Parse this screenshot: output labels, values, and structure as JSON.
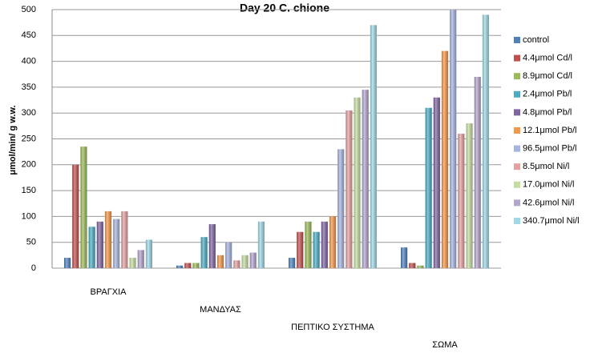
{
  "chart_data": {
    "type": "bar",
    "title": "Day 20 C. chione",
    "y_label": "μmol/min/ g w.w.",
    "categories": [
      "ΒΡΑΓΧΙΑ",
      "ΜΑΝΔΥΑΣ",
      "ΠΕΠΤΙΚΟ ΣΥΣΤΗΜΑ",
      "ΣΩΜΑ"
    ],
    "series": [
      {
        "name": "control",
        "color": "#4f81bd",
        "values": [
          20,
          5,
          20,
          40
        ]
      },
      {
        "name": "4.4μmol Cd/l",
        "color": "#c0504d",
        "values": [
          200,
          10,
          70,
          10
        ]
      },
      {
        "name": "8.9μmol Cd/l",
        "color": "#9bbb59",
        "values": [
          235,
          10,
          90,
          5
        ]
      },
      {
        "name": "2.4μmol Pb/l",
        "color": "#4bacc6",
        "values": [
          80,
          60,
          70,
          310
        ]
      },
      {
        "name": "4.8μmol Pb/l",
        "color": "#8064a2",
        "values": [
          90,
          85,
          90,
          330
        ]
      },
      {
        "name": "12.1μmol Pb/l",
        "color": "#f79646",
        "values": [
          110,
          25,
          100,
          420
        ]
      },
      {
        "name": "96.5μmol Pb/l",
        "color": "#a5b4e0",
        "values": [
          95,
          50,
          230,
          500
        ]
      },
      {
        "name": "8.5μmol Ni/l",
        "color": "#e6a0a0",
        "values": [
          110,
          15,
          305,
          260
        ]
      },
      {
        "name": "17.0μmol Ni/l",
        "color": "#c5dea0",
        "values": [
          20,
          25,
          330,
          280
        ]
      },
      {
        "name": "42.6μmol Ni/l",
        "color": "#b3a5cd",
        "values": [
          35,
          30,
          345,
          370
        ]
      },
      {
        "name": "340.7μmol Ni/l",
        "color": "#9fd8e6",
        "values": [
          55,
          90,
          470,
          490
        ]
      }
    ],
    "ylim": [
      0,
      500
    ],
    "yticks": [
      0,
      50,
      100,
      150,
      200,
      250,
      300,
      350,
      400,
      450,
      500
    ],
    "grid": true
  }
}
